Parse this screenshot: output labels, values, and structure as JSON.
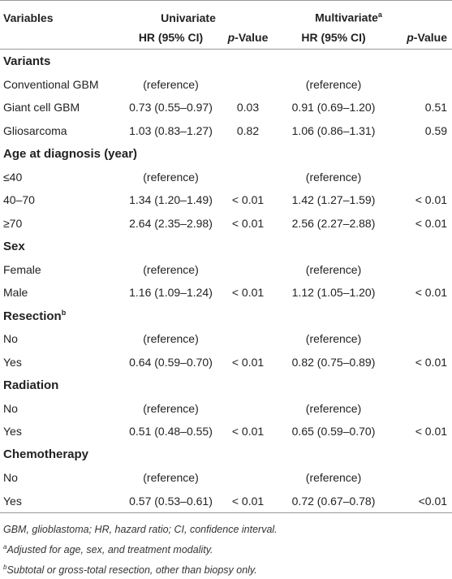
{
  "header": {
    "variables": "Variables",
    "univariate": "Univariate",
    "multivariate": "Multivariate",
    "multivariate_sup": "a",
    "hr": "HR (95% CI)",
    "p_italic": "p",
    "p_rest": "-Value"
  },
  "rows": [
    {
      "type": "section",
      "label": "Variants"
    },
    {
      "type": "data",
      "label": "Conventional GBM",
      "uni": "(reference)",
      "p1": "",
      "mul": "(reference)",
      "p2": ""
    },
    {
      "type": "data",
      "label": "Giant cell GBM",
      "uni": "0.73 (0.55–0.97)",
      "p1": "0.03",
      "mul": "0.91 (0.69–1.20)",
      "p2": "0.51"
    },
    {
      "type": "data",
      "label": "Gliosarcoma",
      "uni": "1.03 (0.83–1.27)",
      "p1": "0.82",
      "mul": "1.06 (0.86–1.31)",
      "p2": "0.59"
    },
    {
      "type": "section",
      "label": "Age at diagnosis (year)"
    },
    {
      "type": "data",
      "label": "≤40",
      "uni": "(reference)",
      "p1": "",
      "mul": "(reference)",
      "p2": ""
    },
    {
      "type": "data",
      "label": "40–70",
      "uni": "1.34 (1.20–1.49)",
      "p1": "< 0.01",
      "mul": "1.42 (1.27–1.59)",
      "p2": "< 0.01"
    },
    {
      "type": "data",
      "label": "≥70",
      "uni": "2.64 (2.35–2.98)",
      "p1": "< 0.01",
      "mul": "2.56 (2.27–2.88)",
      "p2": "< 0.01"
    },
    {
      "type": "section",
      "label": "Sex"
    },
    {
      "type": "data",
      "label": "Female",
      "uni": "(reference)",
      "p1": "",
      "mul": "(reference)",
      "p2": ""
    },
    {
      "type": "data",
      "label": "Male",
      "uni": "1.16 (1.09–1.24)",
      "p1": "< 0.01",
      "mul": "1.12 (1.05–1.20)",
      "p2": "< 0.01"
    },
    {
      "type": "section",
      "label": "Resection",
      "sup": "b"
    },
    {
      "type": "data",
      "label": "No",
      "uni": "(reference)",
      "p1": "",
      "mul": "(reference)",
      "p2": ""
    },
    {
      "type": "data",
      "label": "Yes",
      "uni": "0.64 (0.59–0.70)",
      "p1": "< 0.01",
      "mul": "0.82 (0.75–0.89)",
      "p2": "< 0.01"
    },
    {
      "type": "section",
      "label": "Radiation"
    },
    {
      "type": "data",
      "label": "No",
      "uni": "(reference)",
      "p1": "",
      "mul": "(reference)",
      "p2": ""
    },
    {
      "type": "data",
      "label": "Yes",
      "uni": "0.51 (0.48–0.55)",
      "p1": "< 0.01",
      "mul": "0.65 (0.59–0.70)",
      "p2": "< 0.01"
    },
    {
      "type": "section",
      "label": "Chemotherapy"
    },
    {
      "type": "data",
      "label": "No",
      "uni": "(reference)",
      "p1": "",
      "mul": "(reference)",
      "p2": ""
    },
    {
      "type": "data",
      "label": "Yes",
      "uni": "0.57 (0.53–0.61)",
      "p1": "< 0.01",
      "mul": "0.72 (0.67–0.78)",
      "p2": "<0.01"
    }
  ],
  "notes": {
    "abbrev": "GBM, glioblastoma; HR, hazard ratio; CI, confidence interval.",
    "a_mark": "a",
    "a_text": "Adjusted for age, sex, and treatment modality.",
    "b_mark": "b",
    "b_text": "Subtotal or gross-total resection, other than biopsy only."
  }
}
